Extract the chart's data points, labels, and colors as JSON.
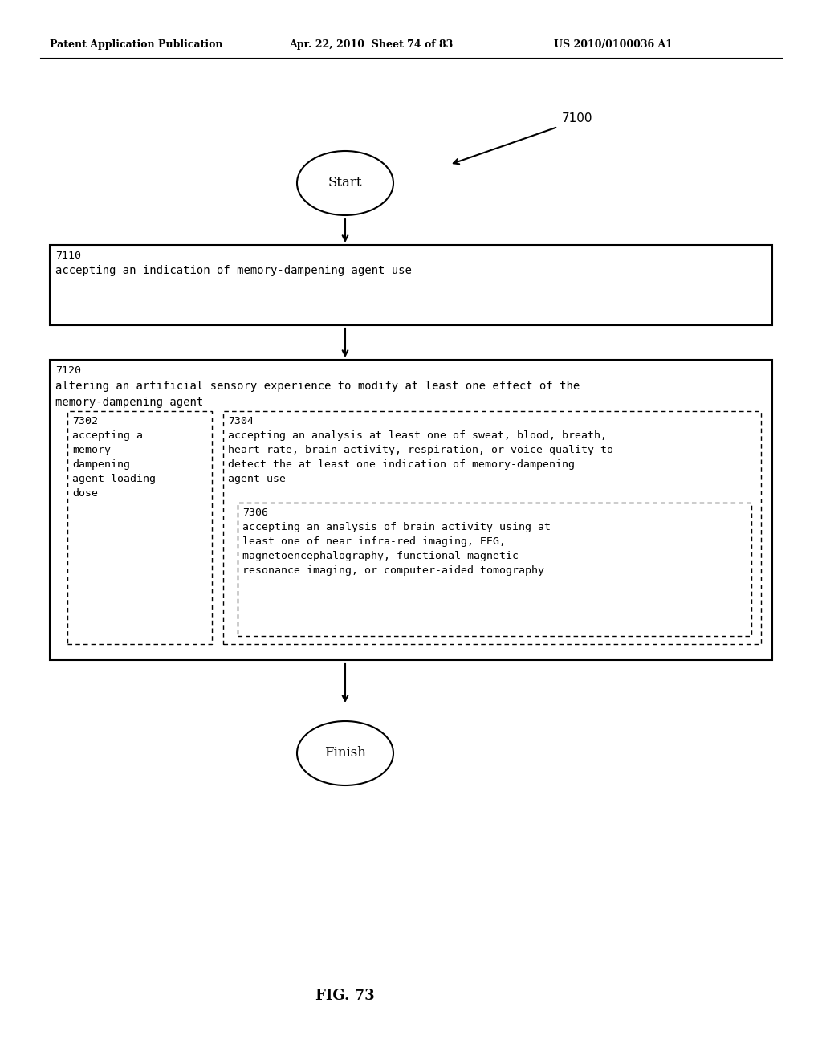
{
  "bg_color": "#ffffff",
  "header_left": "Patent Application Publication",
  "header_mid": "Apr. 22, 2010  Sheet 74 of 83",
  "header_right": "US 2010/0100036 A1",
  "fig_label": "FIG. 73",
  "diagram_label": "7100",
  "start_label": "Start",
  "finish_label": "Finish",
  "box1_id": "7110",
  "box1_text": "accepting an indication of memory-dampening agent use",
  "box2_id": "7120",
  "box2_line1": "altering an artificial sensory experience to modify at least one effect of the",
  "box2_line2": "memory-dampening agent",
  "box3_id": "7302",
  "box3_text": "accepting a\nmemory-\ndampening\nagent loading\ndose",
  "box4_id": "7304",
  "box4_text": "accepting an analysis at least one of sweat, blood, breath,\nheart rate, brain activity, respiration, or voice quality to\ndetect the at least one indication of memory-dampening\nagent use",
  "box5_id": "7306",
  "box5_text": "accepting an analysis of brain activity using at\nleast one of near infra-red imaging, EEG,\nmagnetoencephalography, functional magnetic\nresonance imaging, or computer-aided tomography"
}
